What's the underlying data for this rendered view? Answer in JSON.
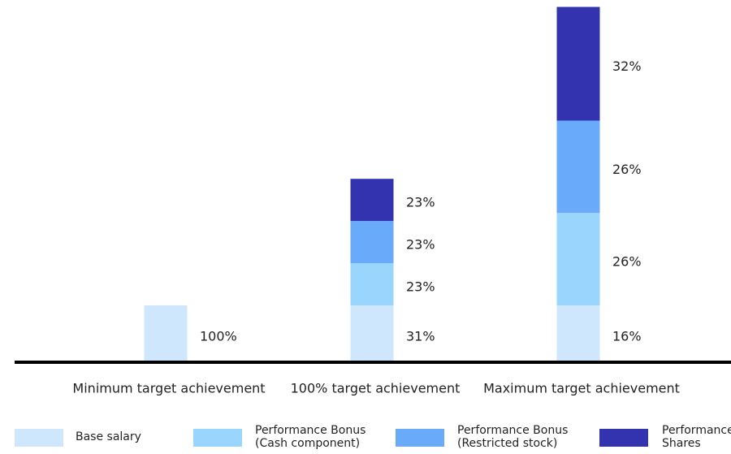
{
  "chart_data": {
    "type": "stacked_bar",
    "categories": [
      "Minimum target achievement",
      "100% target achievement",
      "Maximum target achievement"
    ],
    "series": [
      {
        "name": "Base salary",
        "color": "#cfe7fc",
        "values": [
          100,
          31,
          16
        ],
        "value_labels": [
          "100%",
          "31%",
          "16%"
        ]
      },
      {
        "name": "Performance Bonus (Cash component)",
        "color": "#99d5fd",
        "values": [
          null,
          23,
          26
        ],
        "value_labels": [
          null,
          "23%",
          "26%"
        ]
      },
      {
        "name": "Performance Bonus (Restricted stock)",
        "color": "#6aaafb",
        "values": [
          null,
          23,
          26
        ],
        "value_labels": [
          null,
          "23%",
          "26%"
        ]
      },
      {
        "name": "Performance Shares",
        "color": "#3333b0",
        "values": [
          null,
          23,
          32
        ],
        "value_labels": [
          null,
          "23%",
          "32%"
        ]
      }
    ],
    "legend": "bottom"
  }
}
